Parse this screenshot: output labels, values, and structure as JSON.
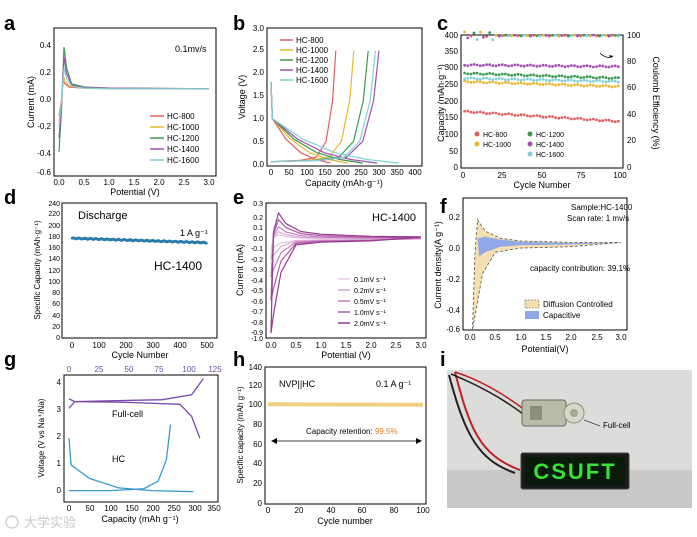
{
  "panels": {
    "a": {
      "letter": "a",
      "xlabel": "Potential (V)",
      "ylabel": "Current (mA)",
      "note": "0.1mv/s",
      "xticks": [
        "0.0",
        "0.5",
        "1.0",
        "1.5",
        "2.0",
        "2.5",
        "3.0"
      ],
      "yticks": [
        "0.4",
        "0.2",
        "0.0",
        "-0.2",
        "-0.4",
        "-0.6"
      ],
      "legend": [
        "HC-800",
        "HC-1000",
        "HC-1200",
        "HC-1400",
        "HC-1600"
      ]
    },
    "b": {
      "letter": "b",
      "xlabel": "Capacity (mAh·g⁻¹)",
      "ylabel": "Voltage (V)",
      "xticks": [
        "0",
        "50",
        "100",
        "150",
        "200",
        "250",
        "300",
        "350",
        "400"
      ],
      "yticks": [
        "0.0",
        "0.5",
        "1.0",
        "1.5",
        "2.0",
        "2.5",
        "3.0"
      ],
      "legend": [
        "HC-800",
        "HC-1000",
        "HC-1200",
        "HC-1400",
        "HC-1600"
      ]
    },
    "c": {
      "letter": "c",
      "xlabel": "Cycle Number",
      "ylabel": "Capacity (mAh·g⁻¹)",
      "y2label": "Coulomb Efficiency (%)",
      "xticks": [
        "0",
        "25",
        "50",
        "75",
        "100"
      ],
      "yticks": [
        "0",
        "50",
        "100",
        "150",
        "200",
        "250",
        "300",
        "350",
        "400"
      ],
      "y2ticks": [
        "0",
        "20",
        "40",
        "60",
        "80",
        "100"
      ],
      "legend": [
        "HC-800",
        "HC-1000",
        "HC-1200",
        "HC-1400",
        "HC-1600"
      ]
    },
    "d": {
      "letter": "d",
      "xlabel": "Cycle Number",
      "ylabel": "Specific Capacity (mAh·g⁻¹)",
      "label_discharge": "Discharge",
      "label_rate": "1 A g⁻¹",
      "label_sample": "HC-1400",
      "xticks": [
        "0",
        "100",
        "200",
        "300",
        "400",
        "500"
      ],
      "yticks": [
        "0",
        "20",
        "40",
        "60",
        "80",
        "100",
        "120",
        "140",
        "160",
        "180",
        "200",
        "220",
        "240"
      ]
    },
    "e": {
      "letter": "e",
      "xlabel": "Potential (V)",
      "ylabel": "Current (mA)",
      "title": "HC-1400",
      "xticks": [
        "0.0",
        "0.5",
        "1.0",
        "1.5",
        "2.0",
        "2.5",
        "3.0"
      ],
      "yticks": [
        "0.3",
        "0.2",
        "0.1",
        "0.0",
        "-0.1",
        "-0.2",
        "-0.3",
        "-0.4",
        "-0.5",
        "-0.6",
        "-0.7",
        "-0.8",
        "-0.9",
        "-1.0"
      ],
      "legend": [
        "0.1mV s⁻¹",
        "0.2mV s⁻¹",
        "0.5mV s⁻¹",
        "1.0mV s⁻¹",
        "2.0mV s⁻¹"
      ]
    },
    "f": {
      "letter": "f",
      "xlabel": "Potential(V)",
      "ylabel": "Current density(A g⁻¹)",
      "sample": "Sample:HC-1400",
      "scan": "Scan rate: 1 mv/s",
      "contribution": "capacity contribution: 39.1%",
      "legend": [
        "Diffusion Controlled",
        "Capacitive"
      ],
      "xticks": [
        "0.0",
        "0.5",
        "1.0",
        "1.5",
        "2.0",
        "2.5",
        "3.0"
      ],
      "yticks": [
        "0.2",
        "0.0",
        "-0.2",
        "-0.4",
        "-0.6"
      ]
    },
    "g": {
      "letter": "g",
      "xlabel": "Capacity (mAh g⁻¹)",
      "ylabel": "Voltage (V vs Na⁺/Na)",
      "label_full": "Full-cell",
      "label_hc": "HC",
      "xticks": [
        "0",
        "50",
        "100",
        "150",
        "200",
        "250",
        "300",
        "350"
      ],
      "topticks": [
        "0",
        "25",
        "50",
        "75",
        "100",
        "125"
      ],
      "yticks": [
        "0",
        "1",
        "2",
        "3",
        "4"
      ]
    },
    "h": {
      "letter": "h",
      "xlabel": "Cycle number",
      "ylabel": "Specific capacity (mAh g⁻¹)",
      "label_cell": "NVP||HC",
      "label_rate": "0.1 A g⁻¹",
      "retention_label": "Capacity retention: ",
      "retention_value": "99.5%",
      "xticks": [
        "0",
        "20",
        "40",
        "60",
        "80",
        "100"
      ],
      "yticks": [
        "0",
        "20",
        "40",
        "60",
        "80",
        "100",
        "120",
        "140"
      ]
    },
    "i": {
      "letter": "i",
      "label_full": "Full-cell",
      "display_text": "CSUFT"
    }
  },
  "watermark": "大学实验",
  "colors": {
    "hc800": "#e06060",
    "hc1000": "#e8b830",
    "hc1200": "#3a9a50",
    "hc1400": "#a050b0",
    "hc1600": "#80d0d8",
    "pink": "#b0409a",
    "diffusion": "#f5deb0",
    "capacitive": "#8fa8e8",
    "retention": "#e07a20",
    "dblue": "#2a7aaa",
    "fullcell": "#7a4aa8",
    "hcblue": "#3a9ad0",
    "nvp": "#f0d080"
  },
  "chart_data": [
    {
      "panel": "a",
      "type": "line",
      "xlim": [
        0,
        3
      ],
      "ylim": [
        -0.65,
        0.45
      ],
      "series": [
        {
          "name": "HC-800",
          "x": [
            0.0,
            0.05,
            0.08,
            0.12,
            0.2,
            0.5,
            1.0,
            3.0
          ],
          "y": [
            -0.25,
            -0.1,
            0.08,
            0.05,
            0.02,
            0.01,
            0.005,
            0.005
          ]
        },
        {
          "name": "HC-1000",
          "x": [
            0.0,
            0.05,
            0.08,
            0.12,
            0.2,
            0.5,
            1.0,
            3.0
          ],
          "y": [
            -0.3,
            -0.12,
            0.12,
            0.08,
            0.03,
            0.01,
            0.005,
            0.005
          ]
        },
        {
          "name": "HC-1200",
          "x": [
            0.0,
            0.05,
            0.1,
            0.15,
            0.25,
            0.5,
            1.0,
            3.0
          ],
          "y": [
            -0.58,
            -0.2,
            0.39,
            0.2,
            0.05,
            0.02,
            0.01,
            0.005
          ]
        },
        {
          "name": "HC-1400",
          "x": [
            0.0,
            0.05,
            0.1,
            0.15,
            0.25,
            0.5,
            1.0,
            3.0
          ],
          "y": [
            -0.45,
            -0.15,
            0.3,
            0.15,
            0.04,
            0.015,
            0.01,
            0.005
          ]
        },
        {
          "name": "HC-1600",
          "x": [
            0.0,
            0.05,
            0.1,
            0.15,
            0.25,
            0.5,
            1.0,
            3.0
          ],
          "y": [
            -0.35,
            -0.12,
            0.2,
            0.1,
            0.03,
            0.01,
            0.005,
            0.005
          ]
        }
      ]
    },
    {
      "panel": "b",
      "type": "line",
      "xlim": [
        0,
        400
      ],
      "ylim": [
        0,
        3
      ],
      "series": [
        {
          "name": "HC-800",
          "discharge_capacity": 165,
          "charge_capacity": 180
        },
        {
          "name": "HC-1000",
          "discharge_capacity": 215,
          "charge_capacity": 230
        },
        {
          "name": "HC-1200",
          "discharge_capacity": 255,
          "charge_capacity": 270
        },
        {
          "name": "HC-1400",
          "discharge_capacity": 295,
          "charge_capacity": 300
        },
        {
          "name": "HC-1600",
          "discharge_capacity": 355,
          "charge_capacity": 290
        }
      ]
    },
    {
      "panel": "c",
      "type": "scatter",
      "xlim": [
        0,
        100
      ],
      "ylim": [
        0,
        400
      ],
      "y2lim": [
        0,
        100
      ],
      "series": [
        {
          "name": "HC-800",
          "start": 170,
          "end": 140
        },
        {
          "name": "HC-1000",
          "start": 260,
          "end": 245
        },
        {
          "name": "HC-1200",
          "start": 285,
          "end": 270
        },
        {
          "name": "HC-1400",
          "start": 310,
          "end": 305
        },
        {
          "name": "HC-1600",
          "start": 270,
          "end": 260
        },
        {
          "name": "Coulomb Efficiency",
          "value": 100
        }
      ]
    },
    {
      "panel": "d",
      "type": "scatter",
      "xlim": [
        0,
        500
      ],
      "ylim": [
        0,
        240
      ],
      "series": [
        {
          "name": "Discharge",
          "start": 180,
          "end": 172
        }
      ]
    },
    {
      "panel": "e",
      "type": "line",
      "xlim": [
        0,
        3
      ],
      "ylim": [
        -1.0,
        0.3
      ],
      "series": [
        {
          "name": "0.1mV s⁻¹",
          "peak": 0.05,
          "valley": -0.1
        },
        {
          "name": "0.2mV s⁻¹",
          "peak": 0.08,
          "valley": -0.2
        },
        {
          "name": "0.5mV s⁻¹",
          "peak": 0.13,
          "valley": -0.38
        },
        {
          "name": "1.0mV s⁻¹",
          "peak": 0.2,
          "valley": -0.62
        },
        {
          "name": "2.0mV s⁻¹",
          "peak": 0.27,
          "valley": -0.95
        }
      ]
    },
    {
      "panel": "f",
      "type": "area",
      "xlim": [
        0,
        3
      ],
      "ylim": [
        -0.6,
        0.25
      ],
      "series": [
        {
          "name": "Capacitive",
          "contribution_percent": 39.1
        },
        {
          "name": "Diffusion Controlled",
          "contribution_percent": 60.9
        }
      ]
    },
    {
      "panel": "g",
      "type": "line",
      "xlim": [
        0,
        350
      ],
      "ylim": [
        0,
        4.5
      ],
      "series": [
        {
          "name": "Full-cell",
          "plateau_voltage": 3.35,
          "capacity": 280
        },
        {
          "name": "HC",
          "capacity": 300
        }
      ]
    },
    {
      "panel": "h",
      "type": "line",
      "xlim": [
        0,
        100
      ],
      "ylim": [
        0,
        140
      ],
      "series": [
        {
          "name": "NVP||HC",
          "start": 102,
          "end": 101.5
        }
      ]
    }
  ]
}
